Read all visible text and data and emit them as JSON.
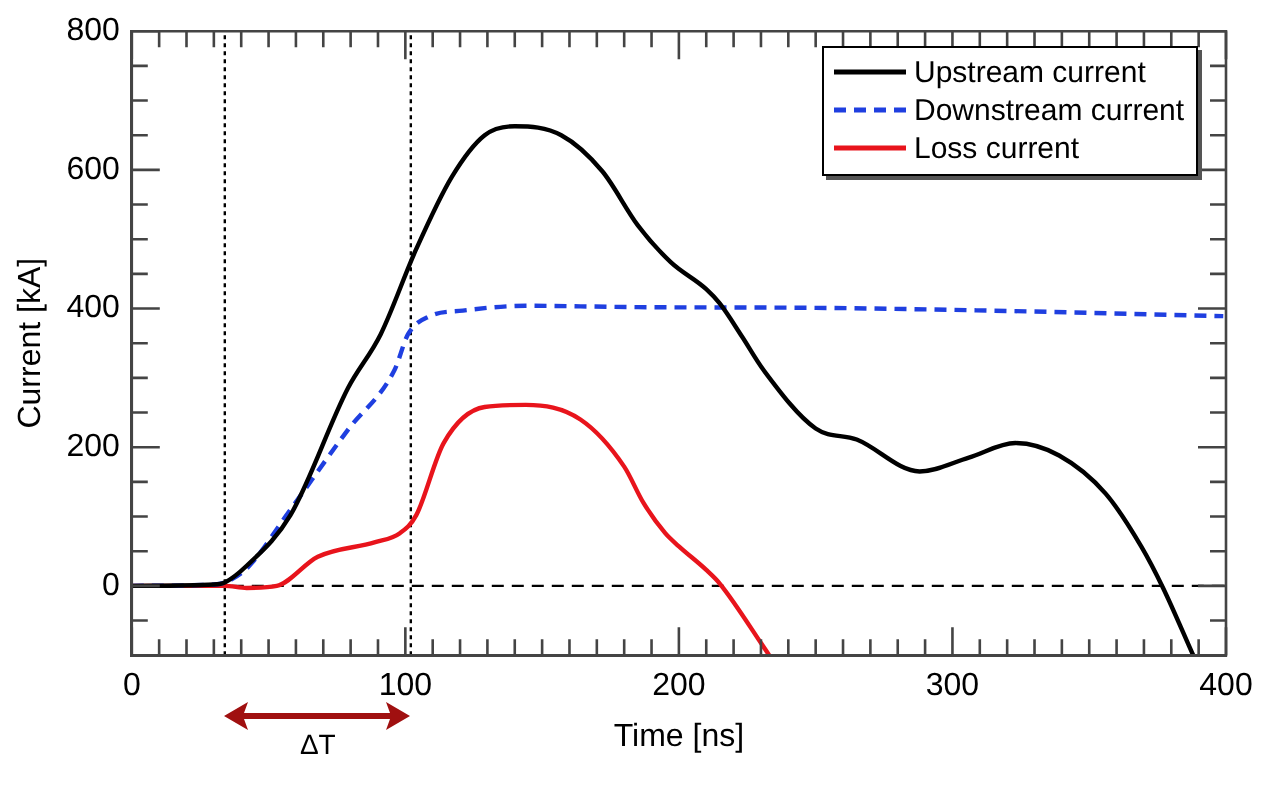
{
  "chart_data": {
    "type": "line",
    "xlabel": "Time [ns]",
    "ylabel": "Current [kA]",
    "xlim": [
      0,
      400
    ],
    "ylim": [
      -100,
      800
    ],
    "xticks": [
      0,
      {
        "value": 10,
        "label": null
      },
      {
        "value": 20,
        "label": null
      },
      {
        "value": 30,
        "label": null
      },
      {
        "value": 40,
        "label": null
      },
      {
        "value": 50,
        "label": null
      },
      {
        "value": 60,
        "label": null
      },
      {
        "value": 70,
        "label": null
      },
      {
        "value": 80,
        "label": null
      },
      {
        "value": 90,
        "label": null
      },
      100,
      {
        "value": 110,
        "label": null
      },
      {
        "value": 120,
        "label": null
      },
      {
        "value": 130,
        "label": null
      },
      {
        "value": 140,
        "label": null
      },
      {
        "value": 150,
        "label": null
      },
      {
        "value": 160,
        "label": null
      },
      {
        "value": 170,
        "label": null
      },
      {
        "value": 180,
        "label": null
      },
      {
        "value": 190,
        "label": null
      },
      200,
      {
        "value": 210,
        "label": null
      },
      {
        "value": 220,
        "label": null
      },
      {
        "value": 230,
        "label": null
      },
      {
        "value": 240,
        "label": null
      },
      {
        "value": 250,
        "label": null
      },
      {
        "value": 260,
        "label": null
      },
      {
        "value": 270,
        "label": null
      },
      {
        "value": 280,
        "label": null
      },
      {
        "value": 290,
        "label": null
      },
      300,
      {
        "value": 310,
        "label": null
      },
      {
        "value": 320,
        "label": null
      },
      {
        "value": 330,
        "label": null
      },
      {
        "value": 340,
        "label": null
      },
      {
        "value": 350,
        "label": null
      },
      {
        "value": 360,
        "label": null
      },
      {
        "value": 370,
        "label": null
      },
      {
        "value": 380,
        "label": null
      },
      {
        "value": 390,
        "label": null
      },
      400
    ],
    "yticks": [
      {
        "value": -100,
        "label": null
      },
      {
        "value": -50,
        "label": null
      },
      0,
      {
        "value": 50,
        "label": null
      },
      {
        "value": 100,
        "label": null
      },
      {
        "value": 150,
        "label": null
      },
      200,
      {
        "value": 250,
        "label": null
      },
      {
        "value": 300,
        "label": null
      },
      {
        "value": 350,
        "label": null
      },
      400,
      {
        "value": 450,
        "label": null
      },
      {
        "value": 500,
        "label": null
      },
      {
        "value": 550,
        "label": null
      },
      600,
      {
        "value": 650,
        "label": null
      },
      {
        "value": 700,
        "label": null
      },
      {
        "value": 750,
        "label": null
      },
      800
    ],
    "grid": false,
    "legend": "top right",
    "marker": "none",
    "series": [
      {
        "name": "Upstream current",
        "color": "#000000",
        "line_style": "solid",
        "x": [
          0,
          30,
          34,
          42,
          58,
          79,
          91,
          104,
          117,
          129,
          140,
          157,
          172,
          185,
          197,
          210,
          215,
          223,
          231,
          250,
          265,
          288,
          306,
          323,
          339,
          356,
          369,
          377,
          388
        ],
        "values": [
          0,
          2,
          5,
          29,
          102,
          285,
          363,
          486,
          590,
          650,
          663,
          650,
          598,
          520,
          467,
          428,
          407,
          360,
          311,
          227,
          211,
          165,
          185,
          206,
          188,
          133,
          57,
          -3,
          -100
        ]
      },
      {
        "name": "Downstream current",
        "color": "#1f3fe0",
        "line_style": "dashed",
        "x": [
          0,
          30,
          34,
          42,
          58,
          79,
          96,
          101,
          109,
          121,
          144,
          185,
          250,
          314,
          399
        ],
        "values": [
          0,
          2,
          5,
          25,
          110,
          225,
          311,
          363,
          389,
          397,
          404,
          402,
          401,
          397,
          389
        ]
      },
      {
        "name": "Loss current",
        "color": "#e8141c",
        "line_style": "solid",
        "x": [
          0,
          34,
          42,
          53,
          68,
          89,
          98,
          104,
          114,
          129,
          144,
          164,
          180,
          187,
          195,
          200,
          210,
          215,
          233
        ],
        "values": [
          0,
          0,
          -3,
          0,
          42,
          63,
          76,
          102,
          206,
          258,
          261,
          240,
          172,
          120,
          76,
          57,
          23,
          3,
          -100
        ]
      }
    ],
    "ref_lines": [
      {
        "axis": "y",
        "value": 0,
        "color": "#000000",
        "line_style": "dashed"
      },
      {
        "axis": "x",
        "value": 34,
        "color": "#000000",
        "line_style": "dotted"
      },
      {
        "axis": "x",
        "value": 102,
        "color": "#000000",
        "line_style": "dotted"
      }
    ],
    "annotations": [
      "ΔT"
    ]
  }
}
